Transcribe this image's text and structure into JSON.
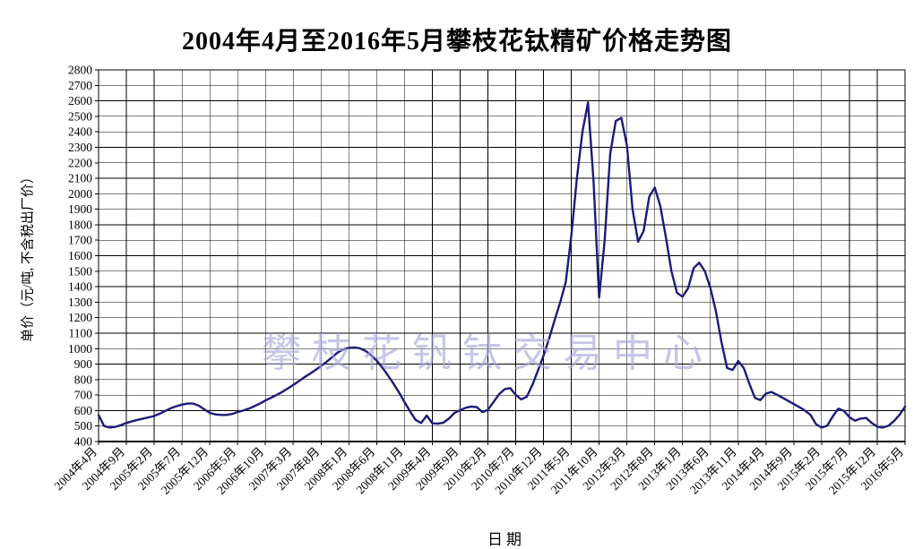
{
  "watermark": "攀枝花钒钛交易中心",
  "colors": {
    "line": "#1b1b78",
    "grid": "#000000",
    "text": "#000000",
    "watermark": "rgba(168,168,216,0.65)",
    "background": "#ffffff"
  },
  "chart_data": {
    "type": "line",
    "title": "2004年4月至2016年5月攀枝花钛精矿价格走势图",
    "xlabel": "日期",
    "ylabel": "单价（元/吨, 不含税出厂价）",
    "ylim": [
      400,
      2800
    ],
    "y_tick_step": 100,
    "y_ticks": [
      400,
      500,
      600,
      700,
      800,
      900,
      1000,
      1100,
      1200,
      1300,
      1400,
      1500,
      1600,
      1700,
      1800,
      1900,
      2000,
      2100,
      2200,
      2300,
      2400,
      2500,
      2600,
      2700,
      2800
    ],
    "grid": true,
    "legend": "none",
    "x_start": "2004年4月",
    "x_end": "2016年5月",
    "x_interval": "1 month",
    "n_points": 146,
    "x_tick_every_n_months": 5,
    "x_tick_labels": [
      "2004年4月",
      "2004年9月",
      "2005年2月",
      "2005年7月",
      "2005年12月",
      "2006年5月",
      "2006年10月",
      "2007年3月",
      "2007年8月",
      "2008年1月",
      "2008年6月",
      "2008年11月",
      "2009年4月",
      "2009年9月",
      "2010年2月",
      "2010年7月",
      "2010年12月",
      "2011年5月",
      "2011年10月",
      "2012年3月",
      "2012年8月",
      "2013年1月",
      "2013年6月",
      "2013年11月",
      "2014年4月",
      "2014年9月",
      "2015年2月",
      "2015年7月",
      "2015年12月",
      "2016年5月"
    ],
    "values": [
      570,
      500,
      490,
      495,
      505,
      520,
      530,
      540,
      548,
      556,
      565,
      580,
      598,
      615,
      628,
      638,
      645,
      645,
      632,
      608,
      585,
      575,
      572,
      572,
      578,
      590,
      600,
      612,
      628,
      645,
      665,
      682,
      700,
      720,
      742,
      765,
      790,
      815,
      838,
      862,
      888,
      915,
      945,
      975,
      995,
      1005,
      1008,
      1002,
      985,
      958,
      922,
      878,
      828,
      775,
      718,
      655,
      595,
      540,
      520,
      568,
      518,
      515,
      522,
      548,
      585,
      602,
      618,
      626,
      622,
      590,
      605,
      655,
      705,
      738,
      745,
      702,
      672,
      690,
      765,
      858,
      955,
      1065,
      1185,
      1300,
      1430,
      1730,
      2100,
      2400,
      2590,
      2080,
      1330,
      1700,
      2260,
      2470,
      2490,
      2310,
      1900,
      1690,
      1760,
      1980,
      2040,
      1920,
      1720,
      1500,
      1360,
      1335,
      1390,
      1520,
      1555,
      1500,
      1390,
      1240,
      1040,
      875,
      862,
      920,
      875,
      775,
      682,
      668,
      710,
      720,
      702,
      682,
      662,
      642,
      622,
      600,
      572,
      512,
      490,
      502,
      562,
      612,
      598,
      558,
      535,
      548,
      552,
      520,
      496,
      490,
      502,
      532,
      572,
      625
    ]
  }
}
